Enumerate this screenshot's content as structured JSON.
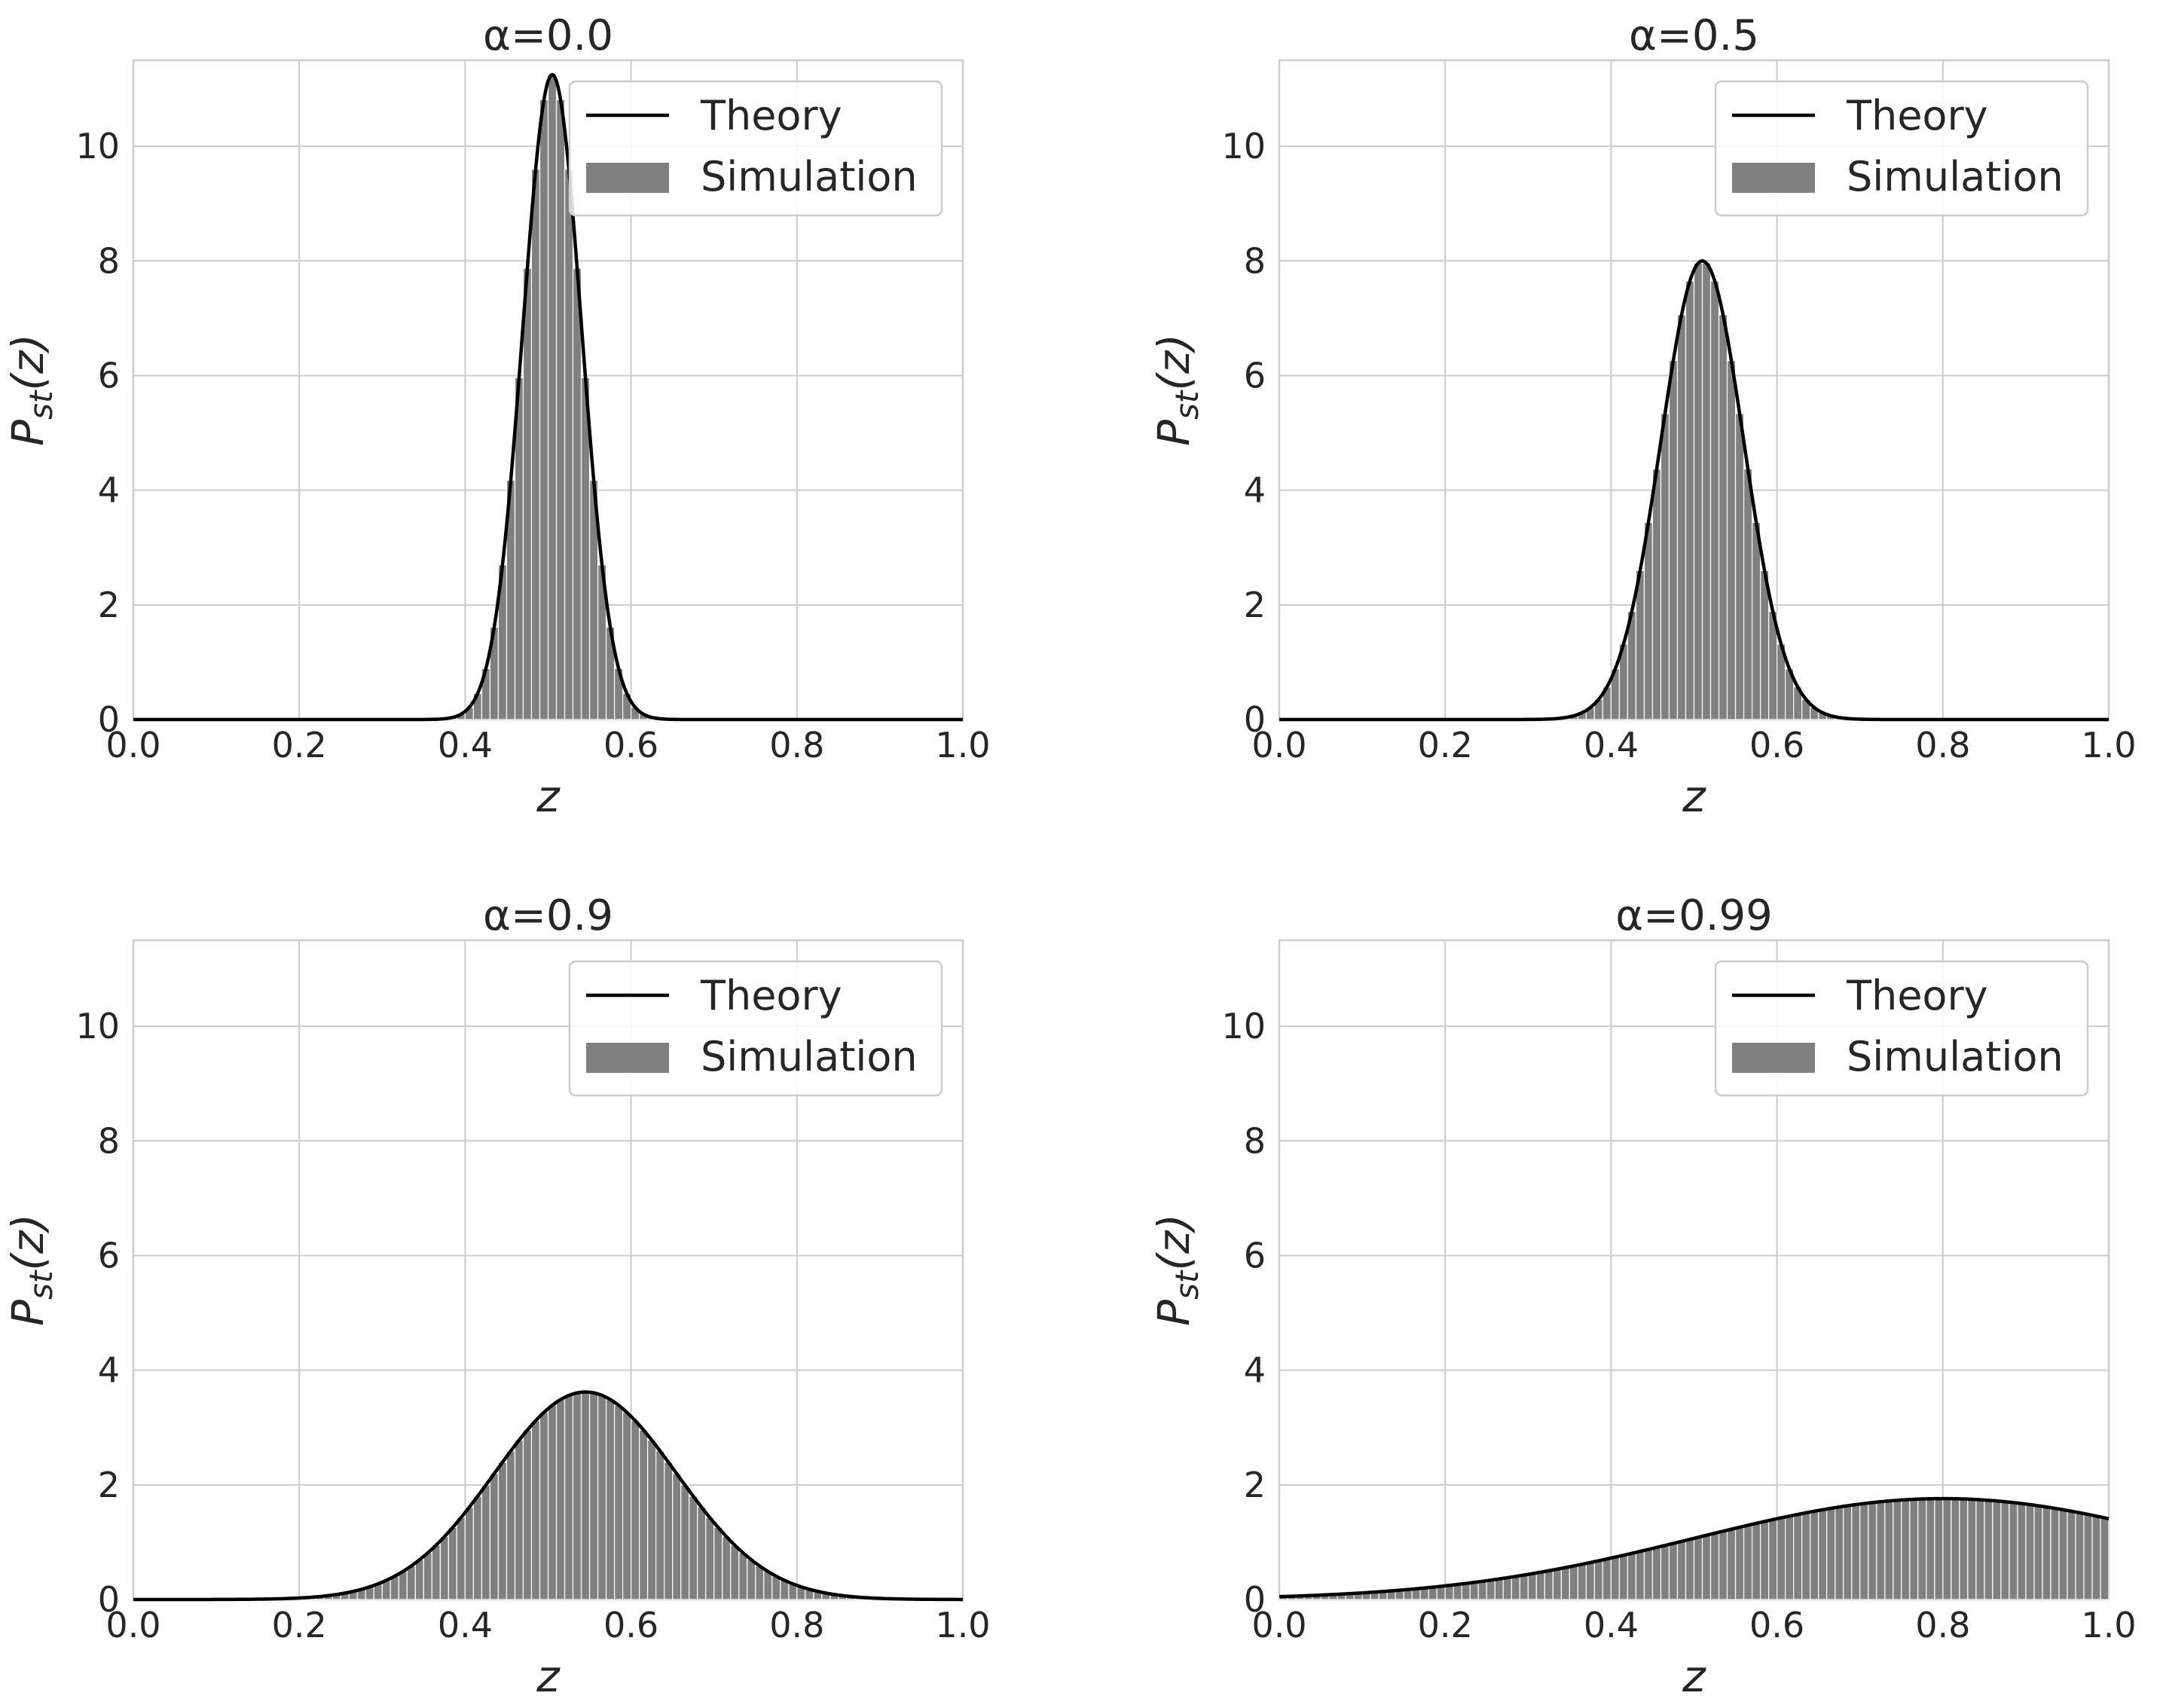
{
  "chart_data": [
    {
      "type": "bar+line",
      "title": "α=0.0",
      "xlabel": "z",
      "ylabel": "P_st(z)",
      "xlim": [
        0.0,
        1.0
      ],
      "ylim": [
        0,
        11.5
      ],
      "xticks": [
        "0.0",
        "0.2",
        "0.4",
        "0.6",
        "0.8",
        "1.0"
      ],
      "yticks": [
        "0",
        "2",
        "4",
        "6",
        "8",
        "10"
      ],
      "legend": {
        "position": "top-right",
        "entries": [
          "Theory",
          "Simulation"
        ]
      },
      "theory": {
        "kind": "gaussian",
        "mean": 0.505,
        "sd": 0.0355,
        "peak": 11.25
      },
      "simulation": {
        "bins": 100,
        "range": [
          0.0,
          1.0
        ]
      }
    },
    {
      "type": "bar+line",
      "title": "α=0.5",
      "xlabel": "z",
      "ylabel": "P_st(z)",
      "xlim": [
        0.0,
        1.0
      ],
      "ylim": [
        0,
        11.5
      ],
      "xticks": [
        "0.0",
        "0.2",
        "0.4",
        "0.6",
        "0.8",
        "1.0"
      ],
      "yticks": [
        "0",
        "2",
        "4",
        "6",
        "8",
        "10"
      ],
      "legend": {
        "position": "top-right",
        "entries": [
          "Theory",
          "Simulation"
        ]
      },
      "theory": {
        "kind": "gaussian",
        "mean": 0.51,
        "sd": 0.05,
        "peak": 8.0
      },
      "simulation": {
        "bins": 100,
        "range": [
          0.0,
          1.0
        ]
      }
    },
    {
      "type": "bar+line",
      "title": "α=0.9",
      "xlabel": "z",
      "ylabel": "P_st(z)",
      "xlim": [
        0.0,
        1.0
      ],
      "ylim": [
        0,
        11.5
      ],
      "xticks": [
        "0.0",
        "0.2",
        "0.4",
        "0.6",
        "0.8",
        "1.0"
      ],
      "yticks": [
        "0",
        "2",
        "4",
        "6",
        "8",
        "10"
      ],
      "legend": {
        "position": "top-right",
        "entries": [
          "Theory",
          "Simulation"
        ]
      },
      "theory": {
        "kind": "gaussian",
        "mean": 0.545,
        "sd": 0.11,
        "peak": 3.62
      },
      "simulation": {
        "bins": 100,
        "range": [
          0.0,
          1.0
        ]
      }
    },
    {
      "type": "bar+line",
      "title": "α=0.99",
      "xlabel": "z",
      "ylabel": "P_st(z)",
      "xlim": [
        0.0,
        1.0
      ],
      "ylim": [
        0,
        11.5
      ],
      "xticks": [
        "0.0",
        "0.2",
        "0.4",
        "0.6",
        "0.8",
        "1.0"
      ],
      "yticks": [
        "0",
        "2",
        "4",
        "6",
        "8",
        "10"
      ],
      "legend": {
        "position": "top-right",
        "entries": [
          "Theory",
          "Simulation"
        ]
      },
      "theory": {
        "kind": "skewed",
        "mean": 0.8,
        "sd": 0.3,
        "peak": 1.76
      },
      "simulation": {
        "bins": 100,
        "range": [
          0.0,
          1.0
        ]
      }
    }
  ],
  "colors": {
    "theory": "#000000",
    "bars": "#808080",
    "grid": "#cccccc",
    "text": "#262626"
  }
}
